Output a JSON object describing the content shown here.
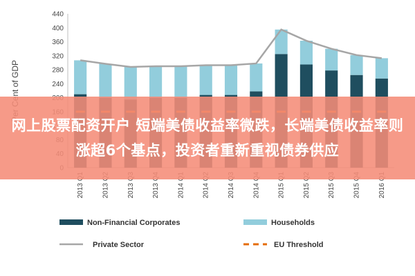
{
  "chart_data": {
    "type": "bar",
    "ylabel": "Per Cent of GDP",
    "ylim": [
      0,
      440
    ],
    "yticks": [
      0,
      40,
      80,
      120,
      160,
      200,
      240,
      280,
      320,
      360,
      400,
      440
    ],
    "categories": [
      "2013 Q1",
      "2013 Q2",
      "2013 Q3",
      "2013 Q4",
      "2014 Q1",
      "2014 Q2",
      "2014 Q3",
      "2014 Q4",
      "2015 Q1",
      "2015 Q2",
      "2015 Q3",
      "2015 Q4",
      "2016 Q1"
    ],
    "series": [
      {
        "name": "Non-Financial Corporates",
        "type": "bar",
        "stack": "total",
        "color": "#1f4e5f",
        "values": [
          210,
          200,
          195,
          200,
          200,
          208,
          208,
          218,
          325,
          295,
          278,
          265,
          255
        ]
      },
      {
        "name": "Households",
        "type": "bar",
        "stack": "total",
        "color": "#92cddc",
        "values": [
          97,
          97,
          93,
          90,
          90,
          85,
          85,
          80,
          70,
          68,
          62,
          57,
          58
        ]
      },
      {
        "name": "Private Sector",
        "type": "line",
        "color": "#a6a6a6",
        "values": [
          307,
          297,
          288,
          290,
          290,
          293,
          293,
          298,
          395,
          363,
          340,
          322,
          313
        ]
      },
      {
        "name": "EU Threshold",
        "type": "line",
        "dashed": true,
        "color": "#e46c0a",
        "values": [
          160,
          160,
          160,
          160,
          160,
          160,
          160,
          160,
          160,
          160,
          160,
          160,
          160
        ]
      }
    ],
    "legend": [
      "Non-Financial Corporates",
      "Households",
      "Private Sector",
      "EU Threshold"
    ],
    "legend_position": "bottom",
    "grid": false
  },
  "overlay": {
    "text": "网上股票配资开户 短端美债收益率微跌，长端美债收益率则涨超6个基点，投资者重新重视债券供应"
  }
}
